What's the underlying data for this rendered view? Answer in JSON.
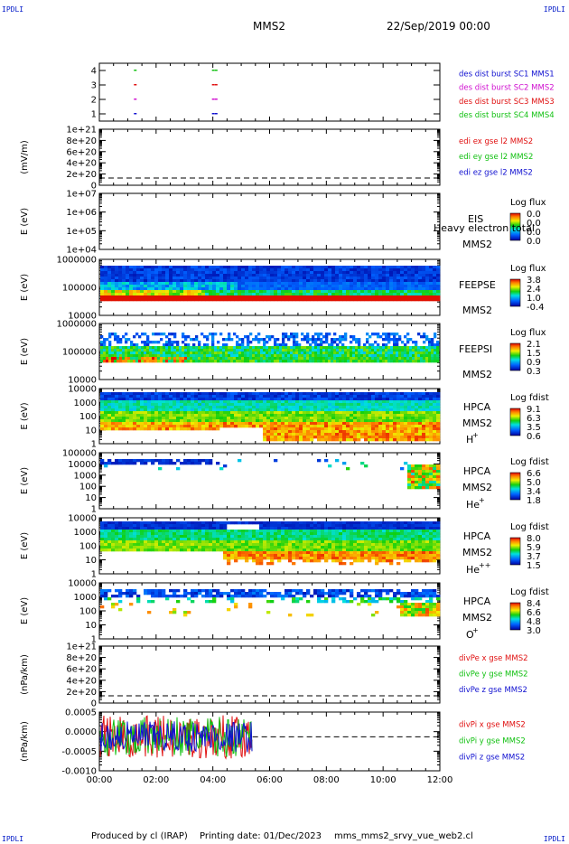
{
  "corners": {
    "tl": "IPDLI",
    "tr": "IPDLI",
    "bl": "IPDLI",
    "br": "IPDLI"
  },
  "header": {
    "spacecraft": "MMS2",
    "datetime": "22/Sep/2019 00:00"
  },
  "footer": {
    "produced": "Produced by cl (IRAP)",
    "printing": "Printing date: 01/Dec/2023",
    "file": "mms_mms2_srvy_vue_web2.cl"
  },
  "colors": {
    "red": "#e01010",
    "green": "#10c010",
    "blue": "#1010d0",
    "magenta": "#d010d0"
  },
  "chart_data": [
    {
      "type": "scatter",
      "id": "des_burst",
      "yticks": [
        "1",
        "2",
        "3",
        "4"
      ],
      "legend": [
        {
          "name": "des dist burst SC1 MMS1",
          "color": "#1010d0"
        },
        {
          "name": "des dist burst SC2 MMS2",
          "color": "#d010d0"
        },
        {
          "name": "des dist burst SC3 MMS3",
          "color": "#e01010"
        },
        {
          "name": "des dist burst SC4 MMS4",
          "color": "#10c010"
        }
      ],
      "marks": [
        {
          "x": 1.25,
          "y": 4,
          "c": "#10c010"
        },
        {
          "x": 1.25,
          "y": 3,
          "c": "#e01010"
        },
        {
          "x": 1.25,
          "y": 2,
          "c": "#d010d0"
        },
        {
          "x": 1.25,
          "y": 1,
          "c": "#1010d0"
        },
        {
          "x": 4.0,
          "y": 4,
          "c": "#10c010"
        },
        {
          "x": 4.1,
          "y": 4,
          "c": "#10c010"
        },
        {
          "x": 4.0,
          "y": 3,
          "c": "#e01010"
        },
        {
          "x": 4.1,
          "y": 3,
          "c": "#e01010"
        },
        {
          "x": 4.0,
          "y": 2,
          "c": "#d010d0"
        },
        {
          "x": 4.1,
          "y": 2,
          "c": "#d010d0"
        },
        {
          "x": 4.0,
          "y": 1,
          "c": "#1010d0"
        },
        {
          "x": 4.1,
          "y": 1,
          "c": "#1010d0"
        }
      ]
    },
    {
      "type": "line",
      "id": "edi",
      "ylabel": "(mV/m)",
      "yticks": [
        "0",
        "2e+20",
        "4e+20",
        "6e+20",
        "8e+20",
        "1e+21"
      ],
      "legend": [
        {
          "name": "edi ex gse l2 MMS2",
          "color": "#e01010"
        },
        {
          "name": "edi ey gse l2 MMS2",
          "color": "#10c010"
        },
        {
          "name": "edi ez gse l2 MMS2",
          "color": "#1010d0"
        }
      ]
    },
    {
      "type": "heatmap",
      "id": "eis",
      "ylabel": "E (eV)",
      "yticks": [
        "1e+04",
        "1e+05",
        "1e+06",
        "1e+07"
      ],
      "inst": "EIS",
      "sc": "MMS2",
      "overlay": "Heavy electron total",
      "cb_title": "Log flux",
      "cb_ticks": [
        "0.0",
        "0.0",
        "0.0",
        "0.0"
      ]
    },
    {
      "type": "heatmap",
      "id": "feepse",
      "ylabel": "E (eV)",
      "yticks": [
        "10000",
        "100000",
        "1000000"
      ],
      "inst": "FEEPSE",
      "sc": "MMS2",
      "cb_title": "Log flux",
      "cb_ticks": [
        "3.8",
        "2.4",
        "1.0",
        "-0.4"
      ]
    },
    {
      "type": "heatmap",
      "id": "feepsi",
      "ylabel": "E (eV)",
      "yticks": [
        "10000",
        "100000",
        "1000000"
      ],
      "inst": "FEEPSI",
      "sc": "MMS2",
      "cb_title": "Log flux",
      "cb_ticks": [
        "2.1",
        "1.5",
        "0.9",
        "0.3"
      ]
    },
    {
      "type": "heatmap",
      "id": "hpca_h",
      "ylabel": "E (eV)",
      "yticks": [
        "1",
        "10",
        "100",
        "1000",
        "10000"
      ],
      "inst": "HPCA",
      "sc": "MMS2",
      "species": "H",
      "charge": "+",
      "cb_title": "Log fdist",
      "cb_ticks": [
        "9.1",
        "6.3",
        "3.5",
        "0.6"
      ]
    },
    {
      "type": "heatmap",
      "id": "hpca_he",
      "ylabel": "E (eV)",
      "yticks": [
        "1",
        "10",
        "100",
        "1000",
        "10000",
        "100000"
      ],
      "inst": "HPCA",
      "sc": "MMS2",
      "species": "He",
      "charge": "+",
      "cb_title": "Log fdist",
      "cb_ticks": [
        "6.6",
        "5.0",
        "3.4",
        "1.8"
      ]
    },
    {
      "type": "heatmap",
      "id": "hpca_hepp",
      "ylabel": "E (eV)",
      "yticks": [
        "1",
        "10",
        "100",
        "1000",
        "10000"
      ],
      "inst": "HPCA",
      "sc": "MMS2",
      "species": "He",
      "charge": "++",
      "cb_title": "Log fdist",
      "cb_ticks": [
        "8.0",
        "5.9",
        "3.7",
        "1.5"
      ]
    },
    {
      "type": "heatmap",
      "id": "hpca_o",
      "ylabel": "E (eV)",
      "yticks": [
        "1",
        "10",
        "100",
        "1000",
        "10000"
      ],
      "inst": "HPCA",
      "sc": "MMS2",
      "species": "O",
      "charge": "+",
      "cb_title": "Log fdist",
      "cb_ticks": [
        "8.4",
        "6.6",
        "4.8",
        "3.0"
      ]
    },
    {
      "type": "line",
      "id": "divpe",
      "ylabel": "(nPa/km)",
      "yticks": [
        "0",
        "2e+20",
        "4e+20",
        "6e+20",
        "8e+20",
        "1e+21"
      ],
      "legend": [
        {
          "name": "divPe x gse MMS2",
          "color": "#e01010"
        },
        {
          "name": "divPe y gse MMS2",
          "color": "#10c010"
        },
        {
          "name": "divPe z gse MMS2",
          "color": "#1010d0"
        }
      ]
    },
    {
      "type": "line",
      "id": "divpi",
      "ylabel": "(nPa/km)",
      "yticks": [
        "-0.0010",
        "-0.0005",
        "0.0000",
        "0.0005"
      ],
      "ylim": [
        -0.0011,
        0.0008
      ],
      "data_end_hour": 5.4,
      "legend": [
        {
          "name": "divPi x gse MMS2",
          "color": "#e01010"
        },
        {
          "name": "divPi y gse MMS2",
          "color": "#10c010"
        },
        {
          "name": "divPi z gse MMS2",
          "color": "#1010d0"
        }
      ]
    }
  ],
  "xaxis": {
    "ticks": [
      "00:00",
      "02:00",
      "04:00",
      "06:00",
      "08:00",
      "10:00",
      "12:00"
    ],
    "range_hours": [
      0,
      12
    ]
  }
}
